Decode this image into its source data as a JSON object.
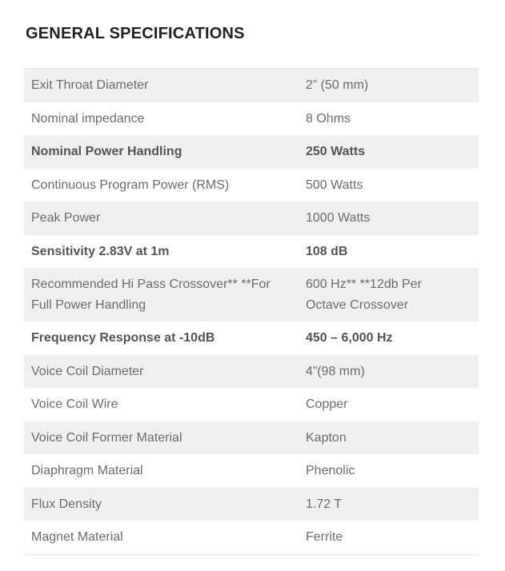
{
  "page": {
    "title": "GENERAL SPECIFICATIONS"
  },
  "colors": {
    "title_text": "#232323",
    "row_text": "#6d6d6d",
    "row_text_emphasis": "#555555",
    "row_alt_background": "#efefef",
    "table_border": "#e2e2e2",
    "page_background": "#ffffff"
  },
  "table": {
    "rows": [
      {
        "label": "Exit Throat Diameter",
        "value": "2” (50 mm)"
      },
      {
        "label": "Nominal impedance",
        "value": "8 Ohms"
      },
      {
        "label": "Nominal Power Handling",
        "value": "250 Watts"
      },
      {
        "label": "Continuous Program Power (RMS)",
        "value": "500 Watts"
      },
      {
        "label": "Peak Power",
        "value": "1000 Watts"
      },
      {
        "label": "Sensitivity 2.83V at 1m",
        "value": "108 dB"
      },
      {
        "label": "Recommended Hi Pass Crossover** **For Full Power Handling",
        "value": "600 Hz** **12db Per Octave Crossover"
      },
      {
        "label": "Frequency Response at -10dB",
        "value": "450 – 6,000 Hz"
      },
      {
        "label": "Voice Coil Diameter",
        "value": "4”(98 mm)"
      },
      {
        "label": "Voice Coil Wire",
        "value": "Copper"
      },
      {
        "label": "Voice Coil Former Material",
        "value": "Kapton"
      },
      {
        "label": "Diaphragm Material",
        "value": "Phenolic"
      },
      {
        "label": "Flux Density",
        "value": "1.72 T"
      },
      {
        "label": "Magnet Material",
        "value": "Ferrite"
      }
    ]
  }
}
